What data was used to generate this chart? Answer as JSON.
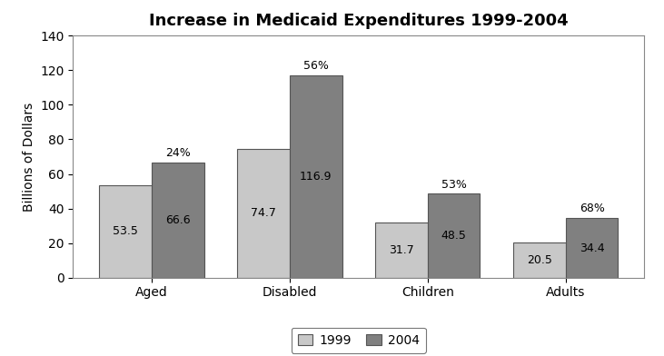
{
  "title": "Increase in Medicaid Expenditures 1999-2004",
  "ylabel": "Billions of Dollars",
  "categories": [
    "Aged",
    "Disabled",
    "Children",
    "Adults"
  ],
  "values_1999": [
    53.5,
    74.7,
    31.7,
    20.5
  ],
  "values_2004": [
    66.6,
    116.9,
    48.5,
    34.4
  ],
  "pct_labels": [
    "24%",
    "56%",
    "53%",
    "68%"
  ],
  "color_1999": "#c8c8c8",
  "color_2004": "#808080",
  "edgecolor": "#555555",
  "ylim": [
    0,
    140
  ],
  "yticks": [
    0,
    20,
    40,
    60,
    80,
    100,
    120,
    140
  ],
  "legend_labels": [
    "1999",
    "2004"
  ],
  "bar_width": 0.38,
  "title_fontsize": 13,
  "ylabel_fontsize": 10,
  "tick_fontsize": 10,
  "annot_fontsize": 9,
  "pct_fontsize": 9,
  "legend_fontsize": 10,
  "background_color": "#ffffff"
}
